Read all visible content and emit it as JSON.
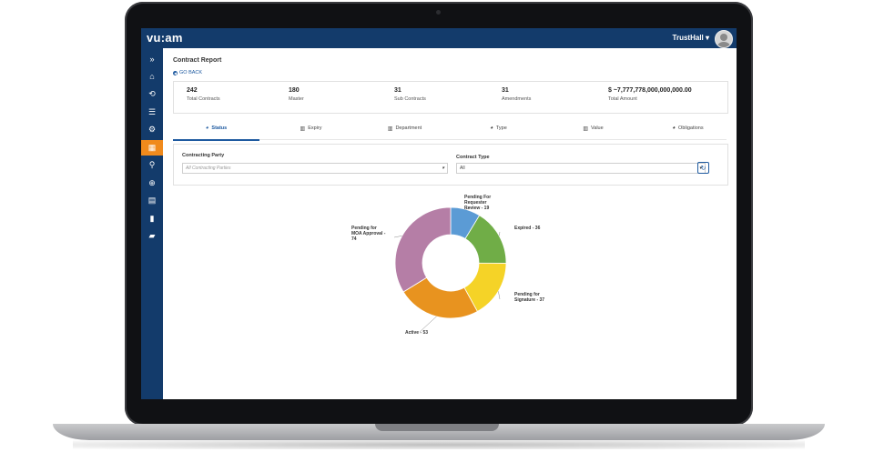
{
  "app": {
    "logo": "vu:am",
    "logo_subtitle": "",
    "user": "TrustHall ▾"
  },
  "sidebar": {
    "items": [
      {
        "name": "expand",
        "icon": "»"
      },
      {
        "name": "home",
        "icon": "⌂"
      },
      {
        "name": "handshake",
        "icon": "⟲"
      },
      {
        "name": "list",
        "icon": "☰"
      },
      {
        "name": "settings",
        "icon": "⚙"
      },
      {
        "name": "reports",
        "icon": "▦",
        "active": true
      },
      {
        "name": "search",
        "icon": "⚲"
      },
      {
        "name": "add",
        "icon": "⊕"
      },
      {
        "name": "table",
        "icon": "▤"
      },
      {
        "name": "document",
        "icon": "▮"
      },
      {
        "name": "folder",
        "icon": "▰"
      }
    ]
  },
  "page": {
    "title": "Contract Report",
    "go_back": "GO BACK"
  },
  "stats": [
    {
      "value": "242",
      "label": "Total Contracts"
    },
    {
      "value": "180",
      "label": "Master"
    },
    {
      "value": "31",
      "label": "Sub Contracts"
    },
    {
      "value": "31",
      "label": "Amendments"
    },
    {
      "value": "$ ~7,777,778,000,000,000.00",
      "label": "Total Amount"
    }
  ],
  "tabs": [
    {
      "label": "Status",
      "icon": "◕",
      "active": true
    },
    {
      "label": "Expiry",
      "icon": "▥"
    },
    {
      "label": "Department",
      "icon": "▥"
    },
    {
      "label": "Type",
      "icon": "◕"
    },
    {
      "label": "Value",
      "icon": "▥"
    },
    {
      "label": "Obligations",
      "icon": "◕"
    }
  ],
  "filters": {
    "contracting_party": {
      "label": "Contracting Party",
      "placeholder": "All Contracting Parties"
    },
    "contract_type": {
      "label": "Contract Type",
      "value": "All"
    }
  },
  "chart_data": {
    "type": "pie",
    "donut": true,
    "categories": [
      "Pending For Requester Review",
      "Expired",
      "Pending for Signature",
      "Active",
      "Pending for MOA Approval"
    ],
    "values": [
      19,
      36,
      37,
      53,
      74
    ],
    "labels": [
      [
        "Pending For",
        "Requester",
        "Review - 19"
      ],
      [
        "Expired - 36"
      ],
      [
        "Pending for",
        "Signature - 37"
      ],
      [
        "Active - 53"
      ],
      [
        "Pending for",
        "MOA Approval -",
        "74"
      ]
    ],
    "colors": [
      "#5b9bd5",
      "#70ad47",
      "#f5d327",
      "#e8931f",
      "#b57ea6"
    ]
  }
}
